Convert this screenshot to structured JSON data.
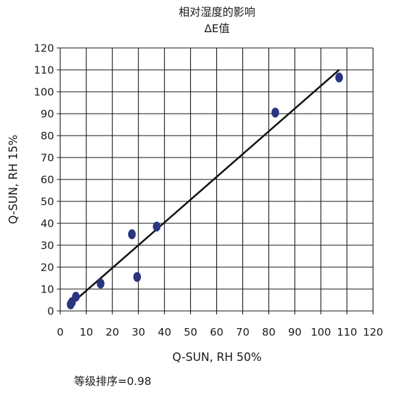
{
  "chart_data": {
    "type": "scatter",
    "title": "相对湿度的影响",
    "subtitle": "ΔE值",
    "xlabel": "Q-SUN, RH 50%",
    "ylabel": "Q-SUN, RH 15%",
    "xlim": [
      0,
      120
    ],
    "ylim": [
      0,
      120
    ],
    "x_ticks": [
      0,
      10,
      20,
      30,
      40,
      50,
      60,
      70,
      80,
      90,
      100,
      110,
      120
    ],
    "y_ticks": [
      0,
      10,
      20,
      30,
      40,
      50,
      60,
      70,
      80,
      90,
      100,
      110,
      120
    ],
    "grid": true,
    "legend": "none",
    "series": [
      {
        "points": [
          {
            "x": 4,
            "y": 3
          },
          {
            "x": 4.5,
            "y": 4
          },
          {
            "x": 6,
            "y": 6.5
          },
          {
            "x": 15.5,
            "y": 12.5
          },
          {
            "x": 27.5,
            "y": 35
          },
          {
            "x": 29.5,
            "y": 15.5
          },
          {
            "x": 37,
            "y": 38.5
          },
          {
            "x": 82.5,
            "y": 90.5
          },
          {
            "x": 107,
            "y": 106.5
          }
        ]
      }
    ],
    "trendline": {
      "x": [
        4,
        107
      ],
      "y": [
        3,
        110
      ]
    },
    "annotation": "等级排序=0.98",
    "colors": {
      "marker": "#2a3580",
      "trendline": "#111111",
      "grid": "#111111",
      "text": "#1a1a1a"
    }
  }
}
